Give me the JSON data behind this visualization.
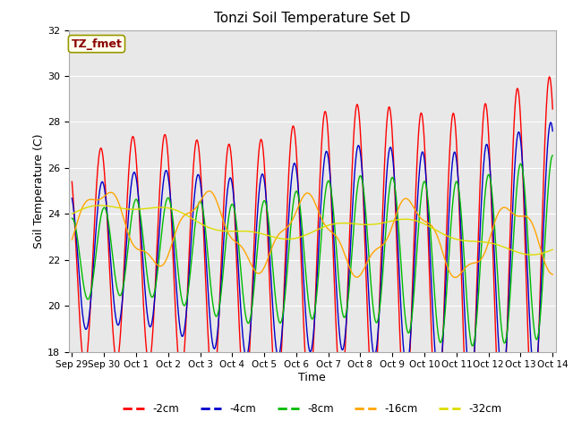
{
  "title": "Tonzi Soil Temperature Set D",
  "xlabel": "Time",
  "ylabel": "Soil Temperature (C)",
  "ylim": [
    18,
    32
  ],
  "annotation_label": "TZ_fmet",
  "annotation_color": "#8B0000",
  "annotation_bg": "#FFFFF0",
  "series_colors": {
    "-2cm": "#FF0000",
    "-4cm": "#0000CC",
    "-8cm": "#00BB00",
    "-16cm": "#FFA500",
    "-32cm": "#DDDD00"
  },
  "xtick_labels": [
    "Sep 29",
    "Sep 30",
    "Oct 1",
    "Oct 2",
    "Oct 3",
    "Oct 4",
    "Oct 5",
    "Oct 6",
    "Oct 7",
    "Oct 8",
    "Oct 9",
    "Oct 10",
    "Oct 11",
    "Oct 12",
    "Oct 13",
    "Oct 14"
  ],
  "ytick_labels": [
    18,
    20,
    22,
    24,
    26,
    28,
    30,
    32
  ],
  "plot_bg_color": "#E8E8E8",
  "grid_color": "#FFFFFF"
}
